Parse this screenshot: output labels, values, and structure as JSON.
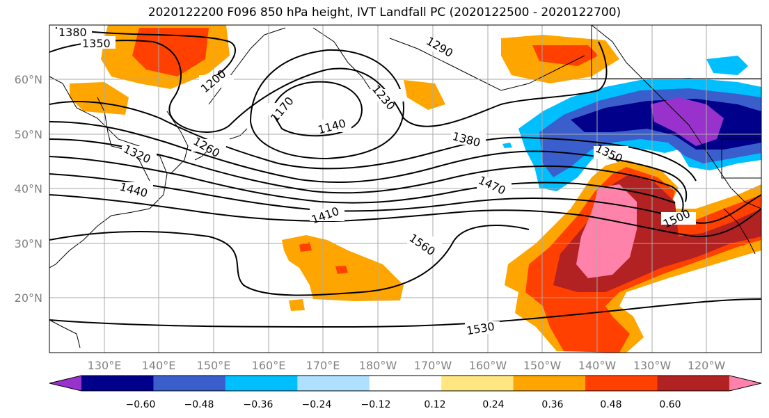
{
  "title": "2020122200 F096 850 hPa height, IVT Landfall PC (2020122500 - 2020122700)",
  "map": {
    "lon_labels": [
      "130°E",
      "140°E",
      "150°E",
      "160°E",
      "170°E",
      "180°W",
      "170°W",
      "160°W",
      "150°W",
      "140°W",
      "130°W",
      "120°W"
    ],
    "lat_labels": [
      "60°N",
      "50°N",
      "40°N",
      "30°N",
      "20°N"
    ],
    "contour_labels": [
      "1380",
      "1350",
      "1290",
      "1200",
      "1230",
      "1170",
      "1140",
      "1260",
      "1320",
      "1380",
      "1350",
      "1440",
      "1470",
      "1410",
      "1500",
      "1560",
      "1530"
    ]
  },
  "colorbar": {
    "ticks": [
      "−0.60",
      "−0.48",
      "−0.36",
      "−0.24",
      "−0.12",
      "0.12",
      "0.24",
      "0.36",
      "0.48",
      "0.60"
    ],
    "colors": [
      "#9932cc",
      "#00008b",
      "#3a5fcd",
      "#00bfff",
      "#b0e0ff",
      "#ffffff",
      "#ffe680",
      "#ffa500",
      "#ff4000",
      "#b22222",
      "#ff82ab"
    ]
  }
}
